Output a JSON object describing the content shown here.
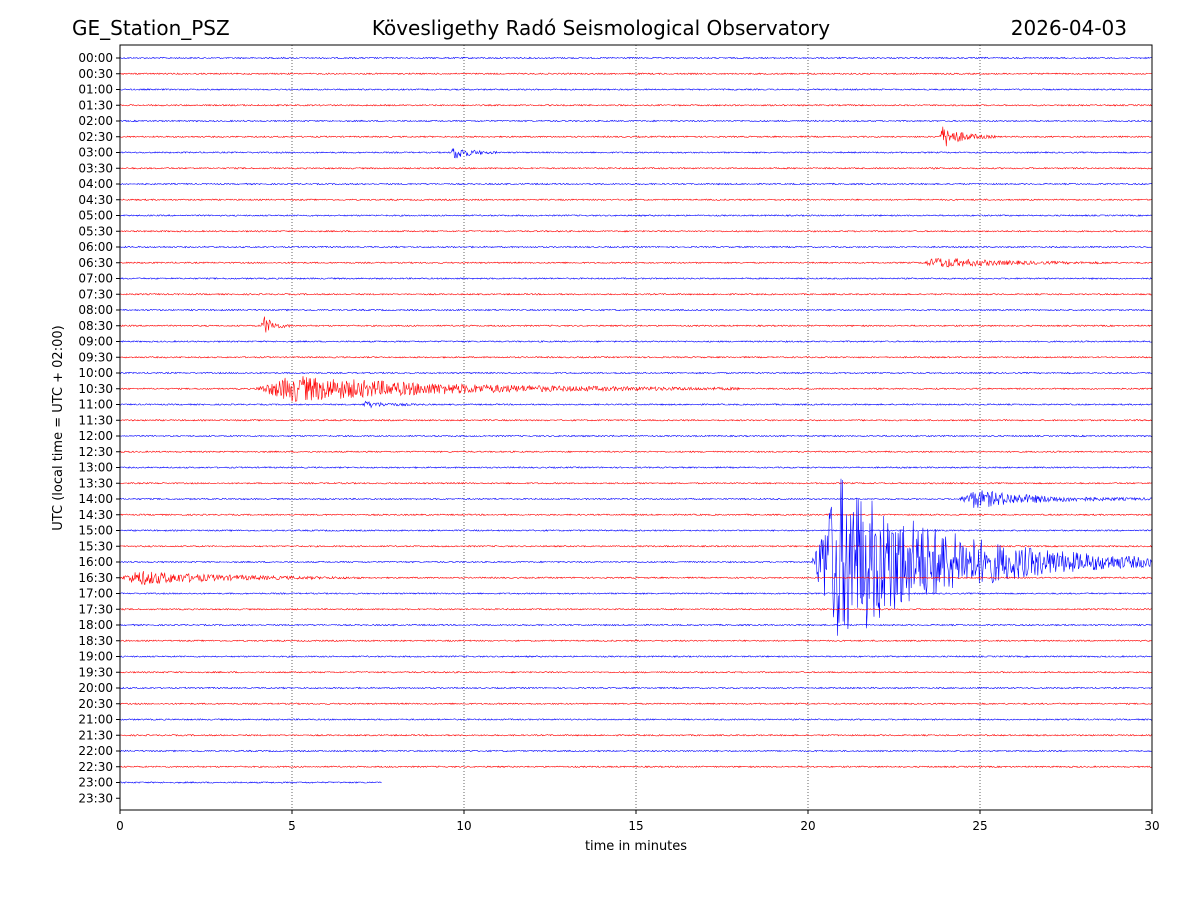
{
  "header": {
    "station": "GE_Station_PSZ",
    "title": "Kövesligethy Radó Seismological Observatory",
    "date": "2026-04-03"
  },
  "chart_data": {
    "type": "line",
    "subtype": "helicorder",
    "xlabel": "time in minutes",
    "ylabel": "UTC (local time = UTC + 02:00)",
    "xlim": [
      0,
      30
    ],
    "x_ticks": [
      "0",
      "5",
      "10",
      "15",
      "20",
      "25",
      "30"
    ],
    "grid": "vertical dotted at x ticks",
    "row_labels": [
      "00:00",
      "00:30",
      "01:00",
      "01:30",
      "02:00",
      "02:30",
      "03:00",
      "03:30",
      "04:00",
      "04:30",
      "05:00",
      "05:30",
      "06:00",
      "06:30",
      "07:00",
      "07:30",
      "08:00",
      "08:30",
      "09:00",
      "09:30",
      "10:00",
      "10:30",
      "11:00",
      "11:30",
      "12:00",
      "12:30",
      "13:00",
      "13:30",
      "14:00",
      "14:30",
      "15:00",
      "15:30",
      "16:00",
      "16:30",
      "17:00",
      "17:30",
      "18:00",
      "18:30",
      "19:00",
      "19:30",
      "20:00",
      "20:30",
      "21:00",
      "21:30",
      "22:00",
      "22:30",
      "23:00",
      "23:30"
    ],
    "colors": [
      "#0000ff",
      "#ff0000"
    ],
    "color_pattern": "alternating rows starting blue",
    "trace_extent_minutes": {
      "23:00": [
        0,
        7.6
      ],
      "23:30": null
    },
    "events": [
      {
        "row": "02:30",
        "start_min": 23.8,
        "end_min": 25.5,
        "peak_amplitude": 11
      },
      {
        "row": "03:00",
        "start_min": 9.6,
        "end_min": 11.0,
        "peak_amplitude": 7
      },
      {
        "row": "06:30",
        "start_min": 23.3,
        "end_min": 29.0,
        "peak_amplitude": 5
      },
      {
        "row": "08:30",
        "start_min": 4.1,
        "end_min": 5.0,
        "peak_amplitude": 10
      },
      {
        "row": "10:30",
        "start_min": 3.9,
        "end_min": 18.0,
        "peak_amplitude": 13
      },
      {
        "row": "11:00",
        "start_min": 7.0,
        "end_min": 9.0,
        "peak_amplitude": 3
      },
      {
        "row": "14:00",
        "start_min": 24.4,
        "end_min": 30.0,
        "peak_amplitude": 9
      },
      {
        "row": "16:00",
        "start_min": 20.1,
        "end_min": 30.0,
        "peak_amplitude": 85
      },
      {
        "row": "16:30",
        "start_min": 0.0,
        "end_min": 7.0,
        "peak_amplitude": 7
      }
    ]
  }
}
